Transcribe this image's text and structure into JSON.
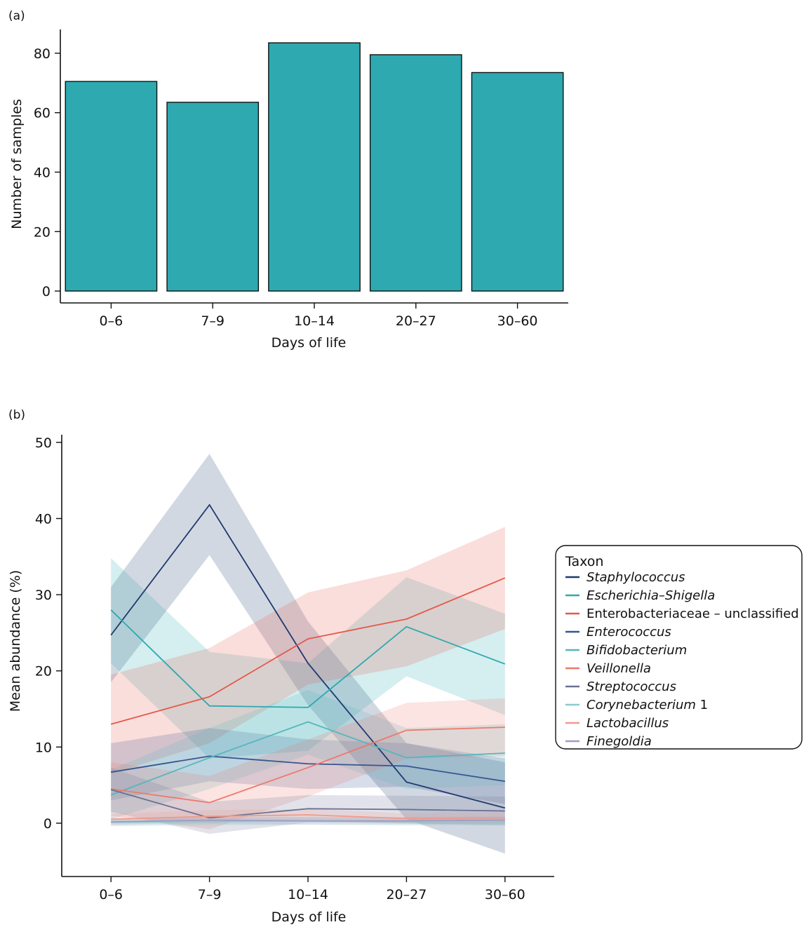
{
  "chart_data": [
    {
      "panel_label": "(a)",
      "type": "bar",
      "categories": [
        "0–6",
        "7–9",
        "10–14",
        "20–27",
        "30–60"
      ],
      "values": [
        70.5,
        63.5,
        83.5,
        79.5,
        73.5
      ],
      "xlabel": "Days of life",
      "ylabel": "Number of samples",
      "ylim": [
        -4,
        88
      ],
      "yticks": [
        0,
        20,
        40,
        60,
        80
      ],
      "bar_color": "#2ea9b0",
      "grid": false
    },
    {
      "panel_label": "(b)",
      "type": "line",
      "categories": [
        "0–6",
        "7–9",
        "10–14",
        "20–27",
        "30–60"
      ],
      "xlabel": "Days of life",
      "ylabel": "Mean abundance (%)",
      "ylim": [
        -7,
        51
      ],
      "yticks": [
        0,
        10,
        20,
        30,
        40,
        50
      ],
      "grid": false,
      "legend": {
        "title": "Taxon",
        "placement": "right"
      },
      "series": [
        {
          "name": "Staphylococcus",
          "italic": true,
          "extra": "",
          "color": "#1f3a6e",
          "values": [
            24.7,
            41.8,
            21.0,
            5.4,
            2.0
          ],
          "lower": [
            18.5,
            35.2,
            15.5,
            0.5,
            -4.0
          ],
          "upper": [
            31.0,
            48.5,
            26.5,
            10.5,
            8.0
          ]
        },
        {
          "name": "Escherichia–Shigella",
          "italic": true,
          "extra": "",
          "color": "#2ea9b0",
          "values": [
            28.0,
            15.4,
            15.2,
            25.8,
            20.9
          ],
          "lower": [
            21.0,
            8.5,
            9.5,
            19.3,
            14.2
          ],
          "upper": [
            34.8,
            22.5,
            21.0,
            32.3,
            27.5
          ]
        },
        {
          "name": "Enterobacteriaceae – unclassified",
          "italic": false,
          "extra": "",
          "color": "#e4594a",
          "values": [
            13.0,
            16.6,
            24.2,
            26.8,
            32.2
          ],
          "lower": [
            6.5,
            10.5,
            18.2,
            20.6,
            25.5
          ],
          "upper": [
            19.5,
            23.0,
            30.3,
            33.2,
            38.9
          ]
        },
        {
          "name": "Enterococcus",
          "italic": true,
          "extra": "",
          "color": "#37558f",
          "values": [
            6.7,
            8.8,
            7.8,
            7.5,
            5.5
          ],
          "lower": [
            3.0,
            5.5,
            4.5,
            4.8,
            2.5
          ],
          "upper": [
            10.5,
            12.5,
            11.0,
            10.5,
            8.5
          ]
        },
        {
          "name": "Bifidobacterium",
          "italic": true,
          "extra": "",
          "color": "#54b7bd",
          "values": [
            3.7,
            8.6,
            13.3,
            8.6,
            9.2
          ],
          "lower": [
            0.5,
            4.5,
            9.0,
            4.5,
            5.0
          ],
          "upper": [
            7.0,
            12.5,
            17.5,
            12.5,
            13.0
          ]
        },
        {
          "name": "Veillonella",
          "italic": true,
          "extra": "",
          "color": "#ec7a6c",
          "values": [
            4.5,
            2.7,
            7.3,
            12.2,
            12.6
          ],
          "lower": [
            1.0,
            -0.8,
            3.5,
            8.5,
            8.8
          ],
          "upper": [
            8.0,
            6.2,
            11.0,
            15.8,
            16.4
          ]
        },
        {
          "name": "Streptococcus",
          "italic": true,
          "extra": "",
          "color": "#6c7194",
          "values": [
            4.4,
            0.7,
            1.9,
            1.8,
            1.6
          ],
          "lower": [
            1.5,
            -1.4,
            0.1,
            0.0,
            -0.3
          ],
          "upper": [
            7.3,
            2.8,
            3.7,
            3.6,
            3.5
          ]
        },
        {
          "name": "Corynebacterium",
          "italic": true,
          "extra": " 1",
          "color": "#8ccbcc",
          "values": [
            0.1,
            0.2,
            0.3,
            0.2,
            0.2
          ],
          "lower": [
            -0.4,
            -0.3,
            -0.2,
            -0.3,
            -0.3
          ],
          "upper": [
            0.6,
            0.7,
            0.8,
            0.7,
            0.7
          ]
        },
        {
          "name": "Lactobacillus",
          "italic": true,
          "extra": "",
          "color": "#f09a8c",
          "values": [
            0.5,
            0.9,
            1.1,
            0.6,
            0.7
          ],
          "lower": [
            -0.2,
            0.1,
            0.3,
            -0.1,
            0.0
          ],
          "upper": [
            1.2,
            1.7,
            1.9,
            1.3,
            1.4
          ]
        },
        {
          "name": "Finegoldia",
          "italic": true,
          "extra": "",
          "color": "#9c9ec4",
          "values": [
            0.2,
            0.4,
            0.3,
            0.3,
            0.4
          ],
          "lower": [
            -0.3,
            -0.1,
            -0.2,
            -0.2,
            -0.1
          ],
          "upper": [
            0.7,
            0.9,
            0.8,
            0.8,
            0.9
          ]
        }
      ]
    }
  ]
}
